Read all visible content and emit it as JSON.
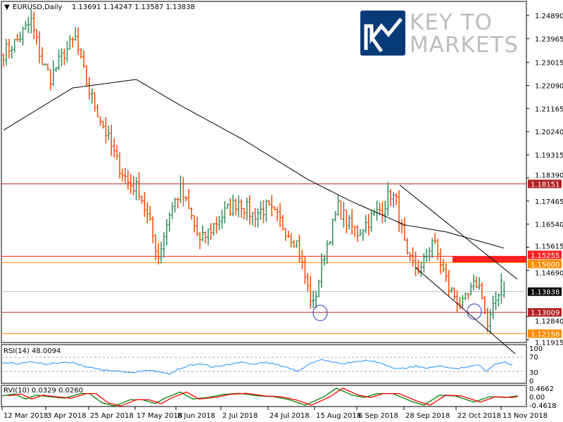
{
  "header": {
    "symbol_tf": "EURUSD,Daily",
    "ohlc": "1.13691 1.14247 1.13587 1.13838"
  },
  "logo": {
    "line1": "KEY TO",
    "line2": "MARKETS"
  },
  "colors": {
    "bull": "#2e8b57",
    "bear": "#ff4500",
    "ma": "#000000",
    "rsi": "#1e90ff",
    "rvi_main": "#008000",
    "rvi_signal": "#ff0000",
    "level_dark_red": "#b22222",
    "level_red": "#ff2020",
    "level_orange": "#ff8c00",
    "circle": "#3030c0"
  },
  "chart_data": {
    "type": "ohlc",
    "symbol": "EURUSD",
    "timeframe": "Daily",
    "price_axis_ticks": [
      "1.24890",
      "1.23965",
      "1.23015",
      "1.22090",
      "1.21165",
      "1.20240",
      "1.19315",
      "1.18390",
      "1.17465",
      "1.16540",
      "1.15615",
      "1.14690",
      "1.12840",
      "1.11915"
    ],
    "price_range": [
      1.1178,
      1.2525
    ],
    "bar_count": 182,
    "close_keypoints": [
      [
        0,
        1.234
      ],
      [
        5,
        1.239
      ],
      [
        10,
        1.2466
      ],
      [
        14,
        1.23
      ],
      [
        17,
        1.2241
      ],
      [
        22,
        1.234
      ],
      [
        26,
        1.2396
      ],
      [
        28,
        1.23
      ],
      [
        31,
        1.2185
      ],
      [
        36,
        1.205
      ],
      [
        41,
        1.1904
      ],
      [
        45,
        1.182
      ],
      [
        49,
        1.1791
      ],
      [
        53,
        1.165
      ],
      [
        56,
        1.1524
      ],
      [
        60,
        1.17
      ],
      [
        64,
        1.1791
      ],
      [
        68,
        1.168
      ],
      [
        71,
        1.158
      ],
      [
        76,
        1.165
      ],
      [
        80,
        1.17
      ],
      [
        85,
        1.1749
      ],
      [
        90,
        1.169
      ],
      [
        95,
        1.172
      ],
      [
        99,
        1.1679
      ],
      [
        103,
        1.162
      ],
      [
        106,
        1.158
      ],
      [
        110,
        1.1397
      ],
      [
        112,
        1.1327
      ],
      [
        116,
        1.1538
      ],
      [
        121,
        1.1721
      ],
      [
        125,
        1.165
      ],
      [
        128,
        1.1622
      ],
      [
        133,
        1.168
      ],
      [
        137,
        1.172
      ],
      [
        140,
        1.1777
      ],
      [
        142,
        1.174
      ],
      [
        146,
        1.151
      ],
      [
        151,
        1.1468
      ],
      [
        155,
        1.1594
      ],
      [
        158,
        1.15
      ],
      [
        161,
        1.1397
      ],
      [
        166,
        1.1327
      ],
      [
        171,
        1.142
      ],
      [
        173,
        1.138
      ],
      [
        175,
        1.1242
      ],
      [
        177,
        1.131
      ],
      [
        180,
        1.143
      ],
      [
        181,
        1.13838
      ]
    ],
    "ma_keypoints": [
      [
        0,
        1.203
      ],
      [
        25,
        1.2199
      ],
      [
        48,
        1.2233
      ],
      [
        64,
        1.2129
      ],
      [
        87,
        1.199
      ],
      [
        110,
        1.1833
      ],
      [
        125,
        1.1749
      ],
      [
        145,
        1.1651
      ],
      [
        160,
        1.1623
      ],
      [
        181,
        1.1558
      ]
    ],
    "levels": [
      {
        "price": 1.18151,
        "label": "1.18151",
        "style": "dark_red"
      },
      {
        "price": 1.15255,
        "label": "1.15255",
        "style": "red"
      },
      {
        "price": 1.15,
        "label": "1.15000",
        "style": "orange"
      },
      {
        "price": 1.13838,
        "label": "1.13838",
        "style": "current"
      },
      {
        "price": 1.13009,
        "label": "1.13009",
        "style": "dark_red"
      },
      {
        "price": 1.12156,
        "label": "1.12156",
        "style": "orange"
      }
    ],
    "x_labels": [
      "12 Mar 2018",
      "3 Apr 2018",
      "25 Apr 2018",
      "17 May 2018",
      "8 Jun 2018",
      "2 Jul 2018",
      "24 Jul 2018",
      "15 Aug 2018",
      "6 Sep 2018",
      "28 Sep 2018",
      "22 Oct 2018",
      "13 Nov 2018"
    ],
    "rsi": {
      "title": "RSI(14) 48.0094",
      "ticks": [
        "100",
        "70",
        "30",
        "0"
      ],
      "levels": [
        70,
        30
      ],
      "keypoints": [
        [
          0,
          55
        ],
        [
          8,
          52
        ],
        [
          15,
          58
        ],
        [
          22,
          50
        ],
        [
          30,
          56
        ],
        [
          37,
          54
        ],
        [
          42,
          44
        ],
        [
          50,
          35
        ],
        [
          58,
          30
        ],
        [
          66,
          27
        ],
        [
          72,
          33
        ],
        [
          78,
          30
        ],
        [
          85,
          22
        ],
        [
          90,
          38
        ],
        [
          96,
          48
        ],
        [
          102,
          52
        ],
        [
          106,
          42
        ],
        [
          110,
          44
        ],
        [
          116,
          52
        ],
        [
          122,
          56
        ],
        [
          128,
          50
        ],
        [
          134,
          56
        ],
        [
          140,
          48
        ],
        [
          146,
          38
        ],
        [
          150,
          30
        ],
        [
          156,
          52
        ],
        [
          162,
          62
        ],
        [
          168,
          56
        ],
        [
          174,
          52
        ],
        [
          180,
          58
        ],
        [
          186,
          62
        ],
        [
          192,
          55
        ],
        [
          198,
          40
        ],
        [
          204,
          38
        ],
        [
          210,
          45
        ],
        [
          216,
          40
        ],
        [
          222,
          45
        ],
        [
          228,
          38
        ],
        [
          234,
          40
        ],
        [
          242,
          48
        ],
        [
          246,
          30
        ],
        [
          250,
          50
        ],
        [
          255,
          55
        ],
        [
          259,
          48
        ]
      ]
    },
    "rvi": {
      "title": "RVI(10) 0.0329 0.0260",
      "ticks": [
        "0.4662",
        "0.00",
        "-0.4618"
      ],
      "main_keypoints": [
        [
          0,
          0.05
        ],
        [
          8,
          0.18
        ],
        [
          15,
          -0.15
        ],
        [
          22,
          0.1
        ],
        [
          30,
          0.0
        ],
        [
          40,
          -0.1
        ],
        [
          50,
          0.2
        ],
        [
          56,
          0.2
        ],
        [
          64,
          -0.4
        ],
        [
          72,
          -0.6
        ],
        [
          82,
          -0.2
        ],
        [
          90,
          -0.2
        ],
        [
          98,
          -0.45
        ],
        [
          104,
          -0.1
        ],
        [
          114,
          0.3
        ],
        [
          122,
          -0.15
        ],
        [
          132,
          -0.05
        ],
        [
          142,
          0.15
        ],
        [
          152,
          0.22
        ],
        [
          164,
          0.05
        ],
        [
          174,
          0.0
        ],
        [
          184,
          -0.2
        ],
        [
          194,
          -0.55
        ],
        [
          206,
          0.0
        ],
        [
          214,
          0.55
        ],
        [
          224,
          0.1
        ],
        [
          232,
          -0.05
        ],
        [
          240,
          0.2
        ],
        [
          250,
          0.2
        ],
        [
          262,
          -0.3
        ],
        [
          270,
          -0.55
        ],
        [
          280,
          0.1
        ],
        [
          290,
          0.05
        ],
        [
          302,
          -0.35
        ],
        [
          312,
          0.0
        ],
        [
          322,
          -0.05
        ],
        [
          330,
          0.05
        ]
      ]
    }
  }
}
